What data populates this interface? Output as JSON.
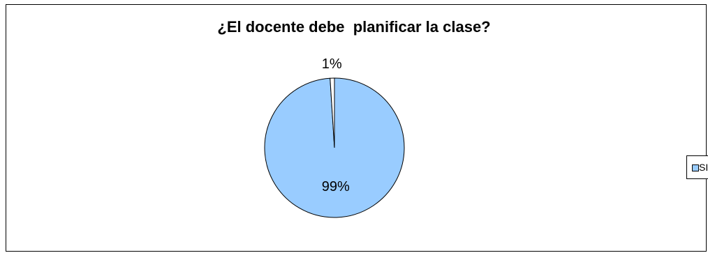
{
  "chart_data": {
    "type": "pie",
    "title": "¿El docente debe  planificar la clase?",
    "slices": [
      {
        "label": "SI",
        "value": 99,
        "data_label": "99%",
        "color": "#99ccff"
      },
      {
        "label": "",
        "value": 1,
        "data_label": "1%",
        "color": "#ffffff"
      }
    ],
    "legend": {
      "position": "right",
      "entries": [
        "SI"
      ]
    }
  }
}
